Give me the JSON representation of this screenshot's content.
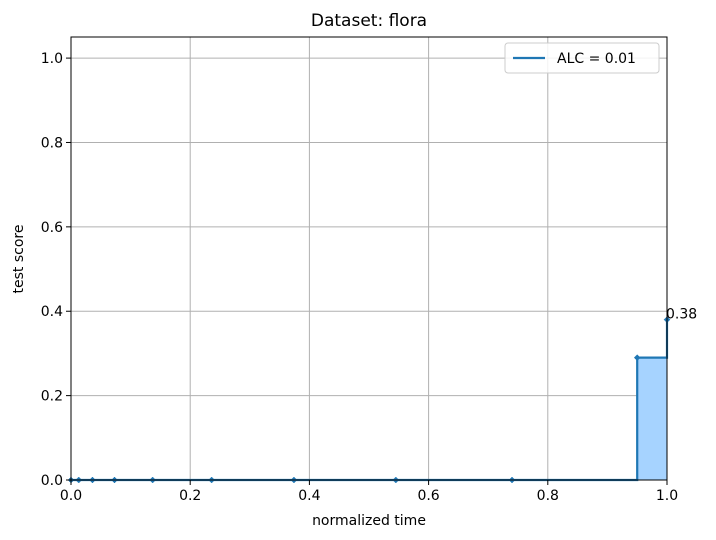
{
  "chart_data": {
    "type": "line",
    "title": "Dataset: flora",
    "xlabel": "normalized time",
    "ylabel": "test score",
    "xlim": [
      0.0,
      1.0
    ],
    "ylim": [
      0.0,
      1.05
    ],
    "xticks": [
      0.0,
      0.2,
      0.4,
      0.6,
      0.8,
      1.0
    ],
    "xtick_labels": [
      "0.0",
      "0.2",
      "0.4",
      "0.6",
      "0.8",
      "1.0"
    ],
    "yticks": [
      0.0,
      0.2,
      0.4,
      0.6,
      0.8,
      1.0
    ],
    "ytick_labels": [
      "0.0",
      "0.2",
      "0.4",
      "0.6",
      "0.8",
      "1.0"
    ],
    "grid": true,
    "legend": {
      "placement": "upper right",
      "entries": [
        "ALC = 0.01"
      ]
    },
    "series": [
      {
        "name": "ALC = 0.01",
        "color": "#1f77b4",
        "fill_color": "#a6d3ff",
        "drawstyle": "steps-post",
        "x": [
          0.0,
          0.013,
          0.036,
          0.073,
          0.137,
          0.236,
          0.374,
          0.545,
          0.74,
          0.95,
          1.0
        ],
        "y": [
          0.0,
          0.0,
          0.0,
          0.0,
          0.0,
          0.0,
          0.0,
          0.0,
          0.0,
          0.29,
          0.38
        ]
      }
    ],
    "annotations": [
      {
        "text": "0.38",
        "x": 1.0,
        "y": 0.38
      }
    ]
  }
}
